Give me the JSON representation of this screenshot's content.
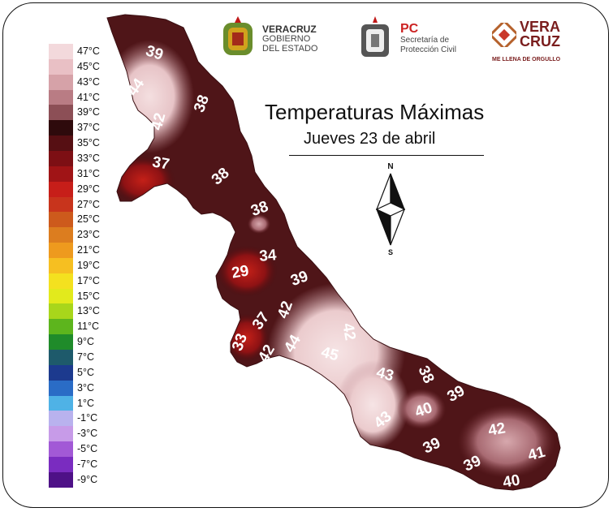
{
  "title": "Temperaturas Máximas",
  "subtitle": "Jueves 23 de abril",
  "compass": {
    "north": "N",
    "south": "S"
  },
  "logos": {
    "veracruz_gobierno": {
      "line1": "VERACRUZ",
      "line2": "GOBIERNO",
      "line3": "DEL ESTADO"
    },
    "proteccion_civil": {
      "line1": "PC",
      "line2": "Secretaría de",
      "line3": "Protección Civil"
    },
    "veracruz_brand": {
      "line1": "VERA",
      "line2": "CRUZ",
      "line3": "ME LLENA DE ORGULLO"
    }
  },
  "legend": [
    {
      "label": "47°C",
      "color": "#f3d9dc"
    },
    {
      "label": "45°C",
      "color": "#e9c0c5"
    },
    {
      "label": "43°C",
      "color": "#d6a2a8"
    },
    {
      "label": "41°C",
      "color": "#b97c84"
    },
    {
      "label": "39°C",
      "color": "#8c4f56"
    },
    {
      "label": "37°C",
      "color": "#2e0a0c"
    },
    {
      "label": "35°C",
      "color": "#560f13"
    },
    {
      "label": "33°C",
      "color": "#7d0f14"
    },
    {
      "label": "31°C",
      "color": "#a01416"
    },
    {
      "label": "29°C",
      "color": "#c71e19"
    },
    {
      "label": "27°C",
      "color": "#c8341c"
    },
    {
      "label": "25°C",
      "color": "#cd5a1c"
    },
    {
      "label": "23°C",
      "color": "#dc7d1f"
    },
    {
      "label": "21°C",
      "color": "#ee9a1e"
    },
    {
      "label": "19°C",
      "color": "#f6bf21"
    },
    {
      "label": "17°C",
      "color": "#f4e11f"
    },
    {
      "label": "15°C",
      "color": "#e2ea1c"
    },
    {
      "label": "13°C",
      "color": "#a8d61b"
    },
    {
      "label": "11°C",
      "color": "#5db51d"
    },
    {
      "label": "9°C",
      "color": "#1f8b2a"
    },
    {
      "label": "7°C",
      "color": "#1e5a6b"
    },
    {
      "label": "5°C",
      "color": "#1c3a8e"
    },
    {
      "label": "3°C",
      "color": "#2a6cc6"
    },
    {
      "label": "1°C",
      "color": "#4fb2e6"
    },
    {
      "label": "-1°C",
      "color": "#b9b2ee"
    },
    {
      "label": "-3°C",
      "color": "#c79be8"
    },
    {
      "label": "-5°C",
      "color": "#a259d6"
    },
    {
      "label": "-7°C",
      "color": "#7a2cc0"
    },
    {
      "label": "-9°C",
      "color": "#4e1187"
    }
  ],
  "map_labels": [
    "39",
    "44",
    "38",
    "42",
    "37",
    "38",
    "38",
    "34",
    "29",
    "39",
    "42",
    "37",
    "33",
    "42",
    "44",
    "42",
    "45",
    "43",
    "38",
    "39",
    "40",
    "43",
    "42",
    "39",
    "39",
    "41",
    "40"
  ]
}
